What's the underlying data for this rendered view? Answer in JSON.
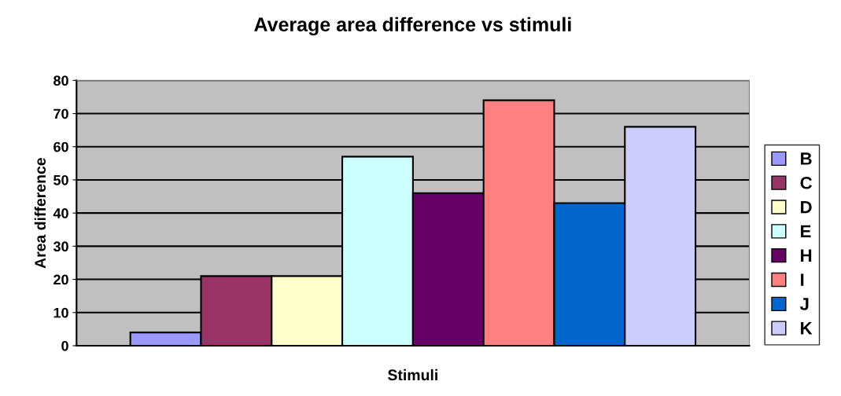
{
  "chart_data": {
    "type": "bar",
    "title": "Average area difference vs stimuli",
    "xlabel": "Stimuli",
    "ylabel": "Area difference",
    "categories": [
      null
    ],
    "series": [
      {
        "name": "B",
        "color": "#9999ff",
        "values": [
          4
        ]
      },
      {
        "name": "C",
        "color": "#993366",
        "values": [
          21
        ]
      },
      {
        "name": "D",
        "color": "#ffffcc",
        "values": [
          21
        ]
      },
      {
        "name": "E",
        "color": "#ccffff",
        "values": [
          57
        ]
      },
      {
        "name": "H",
        "color": "#660066",
        "values": [
          46
        ]
      },
      {
        "name": "I",
        "color": "#ff8080",
        "values": [
          74
        ]
      },
      {
        "name": "J",
        "color": "#0066cc",
        "values": [
          43
        ]
      },
      {
        "name": "K",
        "color": "#ccccff",
        "values": [
          66
        ]
      }
    ],
    "ylim": [
      0,
      80
    ],
    "yticks": [
      0,
      10,
      20,
      30,
      40,
      50,
      60,
      70,
      80
    ],
    "grid": "y",
    "legend": "right"
  }
}
